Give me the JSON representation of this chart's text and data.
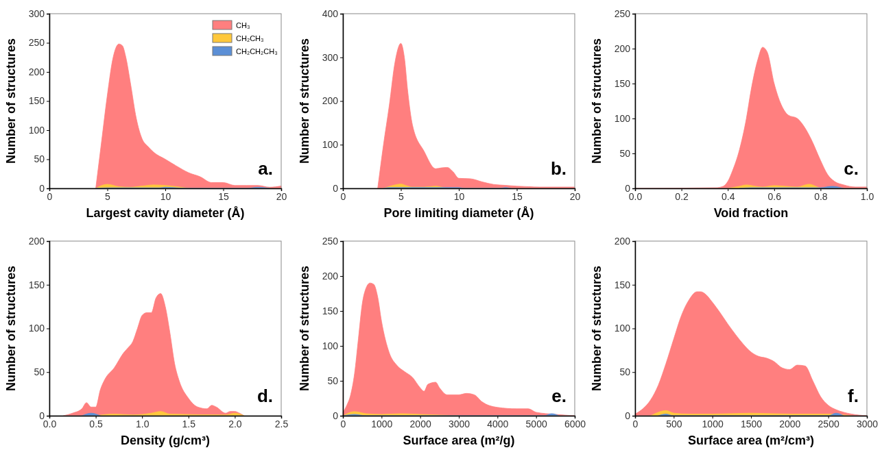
{
  "chart_data": [
    {
      "type": "area",
      "xlabel": "Largest cavity diameter (Å)",
      "ylabel": "Number of structures",
      "annotations": [
        "a."
      ],
      "legend": "top right",
      "xlim": [
        0,
        20
      ],
      "xticks": [
        0,
        5,
        10,
        15,
        20
      ],
      "ylim": [
        0,
        300
      ],
      "yticks": [
        0,
        50,
        100,
        150,
        200,
        250,
        300
      ],
      "series": [
        {
          "name": "CH₃",
          "color": "#ff7f7f",
          "x": [
            4,
            4.5,
            5,
            5.5,
            6,
            6.3,
            6.6,
            7,
            7.5,
            8,
            8.5,
            9,
            10,
            11,
            12,
            13,
            14,
            15,
            16,
            17,
            18,
            19,
            20
          ],
          "values": [
            0,
            80,
            160,
            225,
            248,
            245,
            225,
            180,
            120,
            85,
            72,
            62,
            50,
            38,
            27,
            20,
            10,
            10,
            5,
            5,
            5,
            2,
            4
          ]
        },
        {
          "name": "CH₂CH₃",
          "color": "#ffc83c",
          "x": [
            4,
            5,
            6,
            7,
            8,
            9,
            10,
            11,
            12
          ],
          "values": [
            0,
            7,
            3,
            2,
            4,
            6,
            5,
            3,
            0
          ]
        },
        {
          "name": "CH₂CH₂CH₃",
          "color": "#5b8fd6",
          "x": [
            4,
            5,
            9.5,
            10,
            12,
            17,
            18,
            19
          ],
          "values": [
            0,
            1,
            1,
            2,
            0,
            0,
            2,
            0
          ]
        }
      ]
    },
    {
      "type": "area",
      "xlabel": "Pore limiting diameter (Å)",
      "ylabel": "Number of structures",
      "annotations": [
        "b."
      ],
      "xlim": [
        0,
        20
      ],
      "xticks": [
        0,
        5,
        10,
        15,
        20
      ],
      "ylim": [
        0,
        400
      ],
      "yticks": [
        0,
        100,
        200,
        300,
        400
      ],
      "series": [
        {
          "color": "#ff7f7f",
          "x": [
            3,
            3.5,
            4,
            4.5,
            5,
            5.3,
            5.6,
            6,
            7,
            8,
            8.5,
            9,
            9.5,
            10,
            11,
            12,
            13,
            14,
            15,
            16,
            17,
            20
          ],
          "values": [
            0,
            100,
            190,
            290,
            332,
            300,
            220,
            145,
            85,
            45,
            47,
            48,
            38,
            23,
            22,
            15,
            9,
            7,
            5,
            4,
            3,
            3
          ]
        },
        {
          "color": "#ffc83c",
          "x": [
            3.5,
            4.5,
            5,
            5.5,
            6,
            7,
            8,
            8.5,
            9
          ],
          "values": [
            0,
            8,
            10,
            6,
            3,
            3,
            5,
            3,
            0
          ]
        },
        {
          "color": "#5b8fd6",
          "x": [
            3.5,
            4,
            9,
            10,
            10.5,
            13.5,
            14,
            14.5
          ],
          "values": [
            0,
            2,
            2,
            2,
            0,
            0,
            2,
            0
          ]
        }
      ]
    },
    {
      "type": "area",
      "xlabel": "Void fraction",
      "ylabel": "Number of structures",
      "annotations": [
        "c."
      ],
      "xlim": [
        0,
        1
      ],
      "xticks": [
        {
          "value": 0,
          "label": "0.0"
        },
        0.2,
        0.4,
        0.6,
        0.8,
        {
          "value": 1,
          "label": "1.0"
        }
      ],
      "ylim": [
        0,
        250
      ],
      "yticks": [
        0,
        50,
        100,
        150,
        200,
        250
      ],
      "series": [
        {
          "color": "#ff7f7f",
          "x": [
            0,
            0.35,
            0.38,
            0.4,
            0.42,
            0.45,
            0.48,
            0.5,
            0.53,
            0.55,
            0.57,
            0.6,
            0.63,
            0.66,
            0.7,
            0.73,
            0.76,
            0.8,
            0.83,
            0.86,
            0.9,
            0.95,
            1
          ],
          "values": [
            0,
            1,
            3,
            10,
            25,
            55,
            100,
            140,
            185,
            202,
            195,
            150,
            120,
            105,
            100,
            88,
            70,
            40,
            20,
            10,
            5,
            2,
            2
          ]
        },
        {
          "color": "#ffc83c",
          "x": [
            0.4,
            0.45,
            0.48,
            0.52,
            0.55,
            0.6,
            0.65,
            0.7,
            0.75,
            0.78,
            0.8
          ],
          "values": [
            0,
            3,
            5,
            3,
            2,
            4,
            3,
            2,
            6,
            3,
            0
          ]
        },
        {
          "color": "#5b8fd6",
          "x": [
            0.45,
            0.5,
            0.8,
            0.85,
            0.9
          ],
          "values": [
            0,
            1,
            1,
            3,
            0
          ]
        }
      ]
    },
    {
      "type": "area",
      "xlabel": "Density (g/cm³)",
      "ylabel": "Number of structures",
      "annotations": [
        "d."
      ],
      "xlim": [
        0,
        2.5
      ],
      "xticks": [
        {
          "value": 0,
          "label": "0.0"
        },
        0.5,
        {
          "value": 1,
          "label": "1.0"
        },
        1.5,
        {
          "value": 2,
          "label": "2.0"
        },
        2.5
      ],
      "ylim": [
        0,
        200
      ],
      "yticks": [
        0,
        50,
        100,
        150,
        200
      ],
      "series": [
        {
          "color": "#ff7f7f",
          "x": [
            0.15,
            0.25,
            0.35,
            0.4,
            0.45,
            0.5,
            0.55,
            0.6,
            0.7,
            0.8,
            0.85,
            0.9,
            0.95,
            1.0,
            1.05,
            1.1,
            1.15,
            1.2,
            1.25,
            1.3,
            1.35,
            1.4,
            1.5,
            1.6,
            1.7,
            1.75,
            1.8,
            1.9,
            1.95,
            2.0,
            2.05,
            2.1
          ],
          "values": [
            0,
            3,
            8,
            15,
            10,
            10,
            30,
            42,
            55,
            72,
            78,
            85,
            100,
            115,
            118,
            118,
            135,
            140,
            125,
            95,
            60,
            40,
            20,
            10,
            8,
            12,
            10,
            3,
            5,
            5,
            3,
            0
          ]
        },
        {
          "color": "#ffc83c",
          "x": [
            0.5,
            0.7,
            0.9,
            1.1,
            1.2,
            1.3,
            1.9,
            2.0,
            2.1
          ],
          "values": [
            0,
            2,
            1,
            3,
            5,
            2,
            1,
            3,
            0
          ]
        },
        {
          "color": "#5b8fd6",
          "x": [
            0.35,
            0.45,
            0.55
          ],
          "values": [
            0,
            3,
            0
          ]
        }
      ]
    },
    {
      "type": "area",
      "xlabel": "Surface area (m²/g)",
      "ylabel": "Number of structures",
      "annotations": [
        "e."
      ],
      "xlim": [
        0,
        6000
      ],
      "xticks": [
        0,
        1000,
        2000,
        3000,
        4000,
        5000,
        6000
      ],
      "ylim": [
        0,
        250
      ],
      "yticks": [
        0,
        50,
        100,
        150,
        200,
        250
      ],
      "series": [
        {
          "color": "#ff7f7f",
          "x": [
            0,
            100,
            200,
            300,
            400,
            500,
            600,
            700,
            800,
            900,
            1000,
            1200,
            1400,
            1600,
            1800,
            2000,
            2100,
            2200,
            2400,
            2500,
            2700,
            3000,
            3200,
            3400,
            3600,
            4000,
            4500,
            4800,
            5000,
            5500,
            6000
          ],
          "values": [
            5,
            15,
            30,
            60,
            110,
            160,
            183,
            190,
            188,
            170,
            135,
            90,
            72,
            63,
            55,
            40,
            35,
            45,
            48,
            40,
            30,
            30,
            32,
            30,
            20,
            12,
            10,
            10,
            5,
            2,
            0
          ]
        },
        {
          "color": "#ffc83c",
          "x": [
            0,
            300,
            600,
            1000,
            1500,
            2000,
            2500,
            3000
          ],
          "values": [
            0,
            6,
            3,
            2,
            3,
            2,
            1,
            0
          ]
        },
        {
          "color": "#5b8fd6",
          "x": [
            0,
            300,
            600,
            5200,
            5400,
            5600
          ],
          "values": [
            0,
            2,
            0,
            0,
            3,
            0
          ]
        }
      ]
    },
    {
      "type": "area",
      "xlabel": "Surface area (m²/cm³)",
      "ylabel": "Number of structures",
      "annotations": [
        "f."
      ],
      "xlim": [
        0,
        3000
      ],
      "xticks": [
        0,
        500,
        1000,
        1500,
        2000,
        2500,
        3000
      ],
      "ylim": [
        0,
        200
      ],
      "yticks": [
        0,
        50,
        100,
        150,
        200
      ],
      "series": [
        {
          "color": "#ff7f7f",
          "x": [
            0,
            100,
            200,
            300,
            400,
            500,
            600,
            700,
            800,
            850,
            900,
            1000,
            1100,
            1200,
            1300,
            1400,
            1500,
            1600,
            1700,
            1800,
            1900,
            2000,
            2100,
            2200,
            2300,
            2400,
            2500,
            2600,
            2700,
            2800,
            3000
          ],
          "values": [
            2,
            8,
            18,
            35,
            60,
            88,
            115,
            133,
            142,
            142,
            140,
            130,
            118,
            105,
            93,
            82,
            73,
            68,
            66,
            62,
            55,
            53,
            58,
            57,
            40,
            22,
            12,
            7,
            4,
            2,
            0
          ]
        },
        {
          "color": "#ffc83c",
          "x": [
            200,
            300,
            400,
            500,
            700,
            1000,
            1500,
            2000,
            2500,
            2800
          ],
          "values": [
            0,
            4,
            6,
            3,
            2,
            2,
            3,
            2,
            2,
            0
          ]
        },
        {
          "color": "#5b8fd6",
          "x": [
            300,
            400,
            500,
            2500,
            2600,
            2700
          ],
          "values": [
            0,
            2,
            0,
            0,
            3,
            0
          ]
        }
      ]
    }
  ]
}
